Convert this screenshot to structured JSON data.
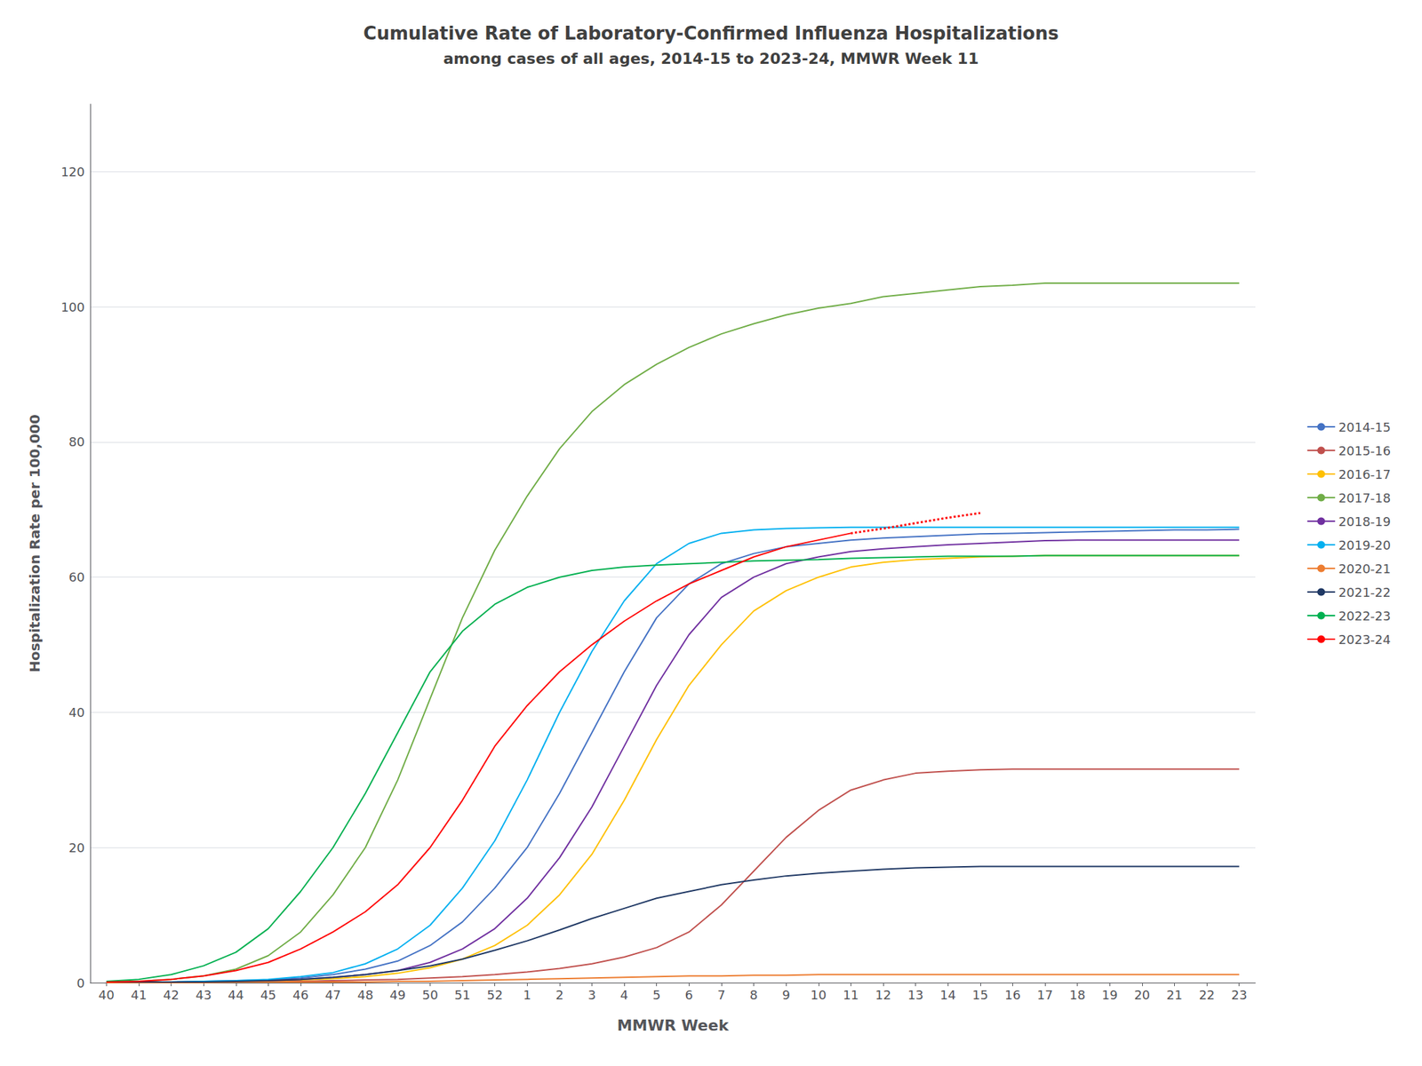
{
  "chart_data": {
    "type": "line",
    "title": "Cumulative Rate of Laboratory-Confirmed Influenza Hospitalizations",
    "subtitle": "among cases of all ages, 2014-15 to 2023-24, MMWR Week 11",
    "x_label": "MMWR Week",
    "y_label": "Hospitalization Rate per 100,000",
    "categories": [
      "40",
      "41",
      "42",
      "43",
      "44",
      "45",
      "46",
      "47",
      "48",
      "49",
      "50",
      "51",
      "52",
      "1",
      "2",
      "3",
      "4",
      "5",
      "6",
      "7",
      "8",
      "9",
      "10",
      "11",
      "12",
      "13",
      "14",
      "15",
      "16",
      "17",
      "18",
      "19",
      "20",
      "21",
      "22",
      "23"
    ],
    "ylim": [
      0,
      130
    ],
    "yticks": [
      0,
      20,
      40,
      60,
      80,
      100,
      120
    ],
    "grid": true,
    "legend": "right",
    "series": [
      {
        "name": "2014-15",
        "color": "#4472C4",
        "line_style": "solid",
        "values": [
          0.1,
          0.1,
          0.1,
          0.2,
          0.3,
          0.4,
          0.7,
          1.2,
          2.0,
          3.2,
          5.5,
          9.0,
          14.0,
          20.0,
          28.0,
          37.0,
          46.0,
          54.0,
          59.0,
          62.0,
          63.5,
          64.5,
          65.0,
          65.5,
          65.8,
          66.0,
          66.2,
          66.4,
          66.5,
          66.6,
          66.7,
          66.8,
          66.9,
          67.0,
          67.0,
          67.1
        ]
      },
      {
        "name": "2015-16",
        "color": "#C0504D",
        "line_style": "solid",
        "values": [
          0.1,
          0.1,
          0.1,
          0.1,
          0.1,
          0.2,
          0.2,
          0.3,
          0.4,
          0.5,
          0.7,
          0.9,
          1.2,
          1.6,
          2.1,
          2.8,
          3.8,
          5.2,
          7.5,
          11.5,
          16.5,
          21.5,
          25.5,
          28.5,
          30.0,
          31.0,
          31.3,
          31.5,
          31.6,
          31.6,
          31.6,
          31.6,
          31.6,
          31.6,
          31.6,
          31.6
        ]
      },
      {
        "name": "2016-17",
        "color": "#FFC000",
        "line_style": "solid",
        "values": [
          0.1,
          0.1,
          0.1,
          0.1,
          0.2,
          0.3,
          0.4,
          0.6,
          0.9,
          1.4,
          2.2,
          3.5,
          5.5,
          8.5,
          13.0,
          19.0,
          27.0,
          36.0,
          44.0,
          50.0,
          55.0,
          58.0,
          60.0,
          61.5,
          62.2,
          62.6,
          62.8,
          63.0,
          63.1,
          63.2,
          63.2,
          63.2,
          63.2,
          63.2,
          63.2,
          63.2
        ]
      },
      {
        "name": "2017-18",
        "color": "#70AD47",
        "line_style": "solid",
        "values": [
          0.1,
          0.2,
          0.5,
          1.0,
          2.0,
          4.0,
          7.5,
          13.0,
          20.0,
          30.0,
          42.0,
          54.0,
          64.0,
          72.0,
          79.0,
          84.5,
          88.5,
          91.5,
          94.0,
          96.0,
          97.5,
          98.8,
          99.8,
          100.5,
          101.5,
          102.0,
          102.5,
          103.0,
          103.2,
          103.5,
          103.5,
          103.5,
          103.5,
          103.5,
          103.5,
          103.5
        ]
      },
      {
        "name": "2018-19",
        "color": "#7030A0",
        "line_style": "solid",
        "values": [
          0.1,
          0.1,
          0.1,
          0.1,
          0.2,
          0.3,
          0.5,
          0.8,
          1.2,
          1.8,
          3.0,
          5.0,
          8.0,
          12.5,
          18.5,
          26.0,
          35.0,
          44.0,
          51.5,
          57.0,
          60.0,
          62.0,
          63.0,
          63.8,
          64.2,
          64.5,
          64.8,
          65.0,
          65.2,
          65.4,
          65.5,
          65.5,
          65.5,
          65.5,
          65.5,
          65.5
        ]
      },
      {
        "name": "2019-20",
        "color": "#00B0F0",
        "line_style": "solid",
        "values": [
          0.1,
          0.1,
          0.1,
          0.2,
          0.3,
          0.5,
          0.9,
          1.5,
          2.8,
          5.0,
          8.5,
          14.0,
          21.0,
          30.0,
          40.0,
          49.0,
          56.5,
          62.0,
          65.0,
          66.5,
          67.0,
          67.2,
          67.3,
          67.4,
          67.4,
          67.4,
          67.4,
          67.4,
          67.4,
          67.4,
          67.4,
          67.4,
          67.4,
          67.4,
          67.4,
          67.4
        ]
      },
      {
        "name": "2020-21",
        "color": "#ED7D31",
        "line_style": "solid",
        "values": [
          0.0,
          0.0,
          0.0,
          0.0,
          0.1,
          0.1,
          0.1,
          0.1,
          0.1,
          0.2,
          0.2,
          0.3,
          0.4,
          0.5,
          0.6,
          0.7,
          0.8,
          0.9,
          1.0,
          1.0,
          1.1,
          1.1,
          1.2,
          1.2,
          1.2,
          1.2,
          1.2,
          1.2,
          1.2,
          1.2,
          1.2,
          1.2,
          1.2,
          1.2,
          1.2,
          1.2
        ]
      },
      {
        "name": "2021-22",
        "color": "#1F3864",
        "line_style": "solid",
        "values": [
          0.1,
          0.1,
          0.1,
          0.1,
          0.2,
          0.3,
          0.5,
          0.8,
          1.2,
          1.8,
          2.5,
          3.5,
          4.8,
          6.2,
          7.8,
          9.5,
          11.0,
          12.5,
          13.5,
          14.5,
          15.2,
          15.8,
          16.2,
          16.5,
          16.8,
          17.0,
          17.1,
          17.2,
          17.2,
          17.2,
          17.2,
          17.2,
          17.2,
          17.2,
          17.2,
          17.2
        ]
      },
      {
        "name": "2022-23",
        "color": "#00B050",
        "line_style": "solid",
        "values": [
          0.2,
          0.5,
          1.2,
          2.5,
          4.5,
          8.0,
          13.5,
          20.0,
          28.0,
          37.0,
          46.0,
          52.0,
          56.0,
          58.5,
          60.0,
          61.0,
          61.5,
          61.8,
          62.0,
          62.2,
          62.4,
          62.5,
          62.6,
          62.8,
          62.9,
          63.0,
          63.1,
          63.1,
          63.1,
          63.2,
          63.2,
          63.2,
          63.2,
          63.2,
          63.2,
          63.2
        ]
      },
      {
        "name": "2023-24",
        "color": "#FF0000",
        "line_style": "solid",
        "values": [
          0.1,
          0.2,
          0.5,
          1.0,
          1.8,
          3.0,
          5.0,
          7.5,
          10.5,
          14.5,
          20.0,
          27.0,
          35.0,
          41.0,
          46.0,
          50.0,
          53.5,
          56.5,
          59.0,
          61.0,
          63.0,
          64.5,
          65.5,
          66.5,
          null,
          null,
          null,
          null,
          null,
          null,
          null,
          null,
          null,
          null,
          null,
          null
        ]
      },
      {
        "color": "#FF0000",
        "line_style": "dotted",
        "values": [
          null,
          null,
          null,
          null,
          null,
          null,
          null,
          null,
          null,
          null,
          null,
          null,
          null,
          null,
          null,
          null,
          null,
          null,
          null,
          null,
          null,
          null,
          null,
          66.5,
          67.2,
          68.0,
          68.8,
          69.5,
          null,
          null,
          null,
          null,
          null,
          null,
          null,
          null
        ]
      }
    ]
  }
}
